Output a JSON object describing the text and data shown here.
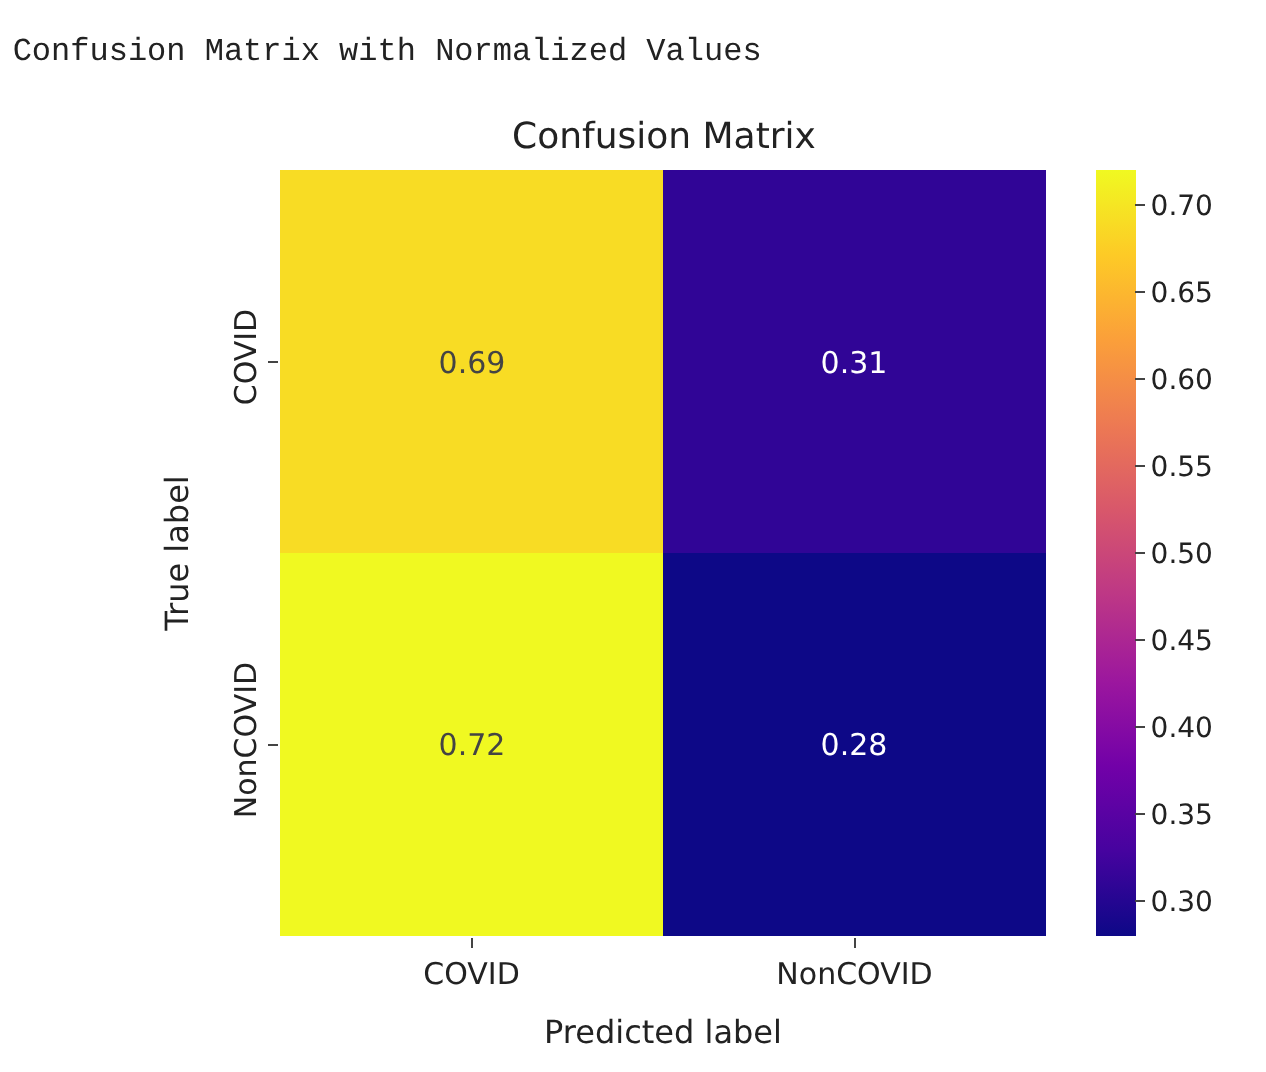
{
  "chart_data": {
    "type": "heatmap",
    "title": "Confusion Matrix with Normalized Values",
    "subtitle": "Confusion Matrix",
    "xlabel": "Predicted label",
    "ylabel": "True label",
    "categories": [
      "COVID",
      "NonCOVID"
    ],
    "y_categories": [
      "COVID",
      "NonCOVID"
    ],
    "cells": [
      [
        0.69,
        0.31
      ],
      [
        0.72,
        0.28
      ]
    ],
    "data_labels": true,
    "clim": [
      0.28,
      0.72
    ],
    "cticks": [
      {
        "value": 0.3,
        "label": "0.30"
      },
      0.35,
      {
        "value": 0.4,
        "label": "0.40"
      },
      0.45,
      {
        "value": 0.5,
        "label": "0.50"
      },
      0.55,
      {
        "value": 0.6,
        "label": "0.60"
      },
      0.65,
      {
        "value": 0.7,
        "label": "0.70"
      }
    ]
  }
}
